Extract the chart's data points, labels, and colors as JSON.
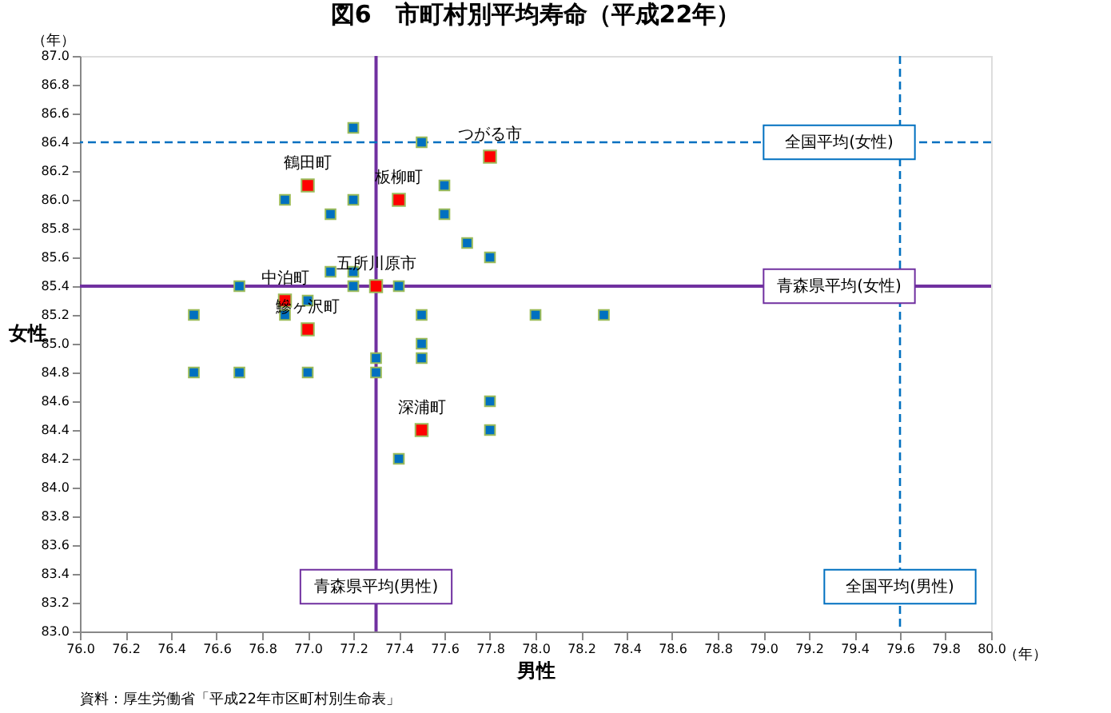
{
  "chart_data": {
    "type": "scatter",
    "title": "図6　市町村別平均寿命（平成22年）",
    "xlabel": "男性",
    "ylabel": "女性",
    "xlim": [
      76,
      80
    ],
    "ylim": [
      83,
      87
    ],
    "xticks": [
      {
        "value": 76,
        "label": "76.0"
      },
      76.2,
      76.4,
      76.6,
      76.8,
      {
        "value": 77,
        "label": "77.0"
      },
      77.2,
      77.4,
      77.6,
      77.8,
      {
        "value": 78,
        "label": "78.0"
      },
      78.2,
      78.4,
      78.6,
      78.8,
      {
        "value": 79,
        "label": "79.0"
      },
      79.2,
      79.4,
      79.6,
      79.8,
      {
        "value": 80,
        "label": "80.0"
      }
    ],
    "yticks": [
      {
        "value": 83,
        "label": "83.0"
      },
      83.2,
      83.4,
      83.6,
      83.8,
      {
        "value": 84,
        "label": "84.0"
      },
      84.2,
      84.4,
      84.6,
      84.8,
      {
        "value": 85,
        "label": "85.0"
      },
      85.2,
      85.4,
      85.6,
      85.8,
      {
        "value": 86,
        "label": "86.0"
      },
      86.2,
      86.4,
      86.6,
      86.8,
      {
        "value": 87,
        "label": "87.0"
      }
    ],
    "marker": "square",
    "grid": false,
    "series": [
      {
        "color": "#0070c0",
        "x": [
          77.2,
          77.5,
          77.6,
          76.9,
          77.2,
          77.1,
          77.6,
          77.7,
          77.8,
          77.1,
          77.2,
          76.7,
          77.2,
          77.4,
          77.0,
          76.9,
          76.5,
          77.5,
          78.0,
          78.3,
          77.5,
          77.5,
          77.3,
          77.3,
          76.5,
          76.7,
          77.0,
          77.8,
          77.8,
          77.4
        ],
        "values": [
          86.5,
          86.4,
          86.1,
          86.0,
          86.0,
          85.9,
          85.9,
          85.7,
          85.6,
          85.5,
          85.5,
          85.4,
          85.4,
          85.4,
          85.3,
          85.2,
          85.2,
          85.2,
          85.2,
          85.2,
          85.0,
          84.9,
          84.9,
          84.8,
          84.8,
          84.8,
          84.8,
          84.6,
          84.4,
          84.2
        ]
      },
      {
        "color": "#ff0000",
        "x": [
          77.8,
          77.0,
          77.4,
          77.3,
          76.9,
          77.0,
          77.5
        ],
        "values": [
          86.3,
          86.1,
          86.0,
          85.4,
          85.3,
          85.1,
          84.4
        ]
      }
    ],
    "ref_lines": [
      {
        "axis": "x",
        "value": 77.3,
        "label": "青森県平均(男性)",
        "color": "#7030a0",
        "line_style": "solid"
      },
      {
        "axis": "x",
        "value": 79.6,
        "label": "全国平均(男性)",
        "color": "#0070c0",
        "line_style": "dashed"
      },
      {
        "axis": "y",
        "value": 85.4,
        "label": "青森県平均(女性)",
        "color": "#7030a0",
        "line_style": "solid"
      },
      {
        "axis": "y",
        "value": 86.4,
        "label": "全国平均(女性)",
        "color": "#0070c0",
        "line_style": "dashed"
      }
    ],
    "annotations": [
      {
        "text": "つがる市",
        "x": 77.8,
        "y": 86.3
      },
      {
        "text": "鶴田町",
        "x": 77.0,
        "y": 86.1
      },
      {
        "text": "板柳町",
        "x": 77.4,
        "y": 86.0
      },
      {
        "text": "五所川原市",
        "x": 77.3,
        "y": 85.4
      },
      {
        "text": "中泊町",
        "x": 76.9,
        "y": 85.3
      },
      {
        "text": "鰺ヶ沢町",
        "x": 77.0,
        "y": 85.1
      },
      {
        "text": "深浦町",
        "x": 77.5,
        "y": 84.4
      },
      "（年）",
      "（年）",
      "資料：厚生労働省「平成22年市区町村別生命表」"
    ]
  }
}
